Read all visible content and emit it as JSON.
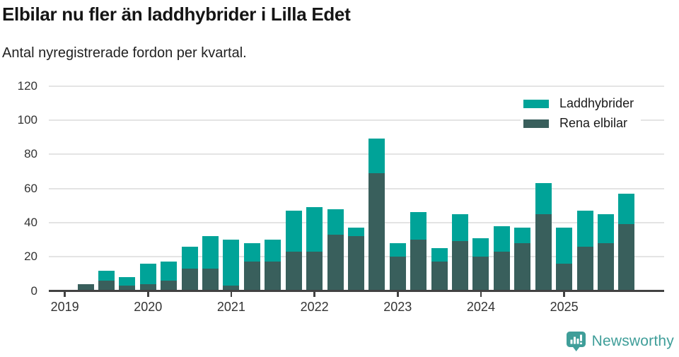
{
  "header": {
    "title": "Elbilar nu fler än laddhybrider i Lilla Edet",
    "subtitle": "Antal nyregistrerade fordon per kvartal."
  },
  "branding": {
    "logo_text": "Newsworthy",
    "logo_color": "#3f9e99"
  },
  "chart_data": {
    "type": "bar",
    "stacked": true,
    "title": "Elbilar nu fler än laddhybrider i Lilla Edet",
    "subtitle": "Antal nyregistrerade fordon per kvartal.",
    "xlabel": "",
    "ylabel": "",
    "ylim": [
      0,
      120
    ],
    "yticks": [
      0,
      20,
      40,
      60,
      80,
      100,
      120
    ],
    "grid": true,
    "legend_position": "top-right",
    "x_tick_labels": [
      "2019",
      "2020",
      "2021",
      "2022",
      "2023",
      "2024",
      "2025"
    ],
    "categories": [
      "2019-Q1",
      "2019-Q2",
      "2019-Q3",
      "2019-Q4",
      "2020-Q1",
      "2020-Q2",
      "2020-Q3",
      "2020-Q4",
      "2021-Q1",
      "2021-Q2",
      "2021-Q3",
      "2021-Q4",
      "2022-Q1",
      "2022-Q2",
      "2022-Q3",
      "2022-Q4",
      "2023-Q1",
      "2023-Q2",
      "2023-Q3",
      "2023-Q4",
      "2024-Q1",
      "2024-Q2",
      "2024-Q3",
      "2024-Q4",
      "2025-Q1",
      "2025-Q2",
      "2025-Q3",
      "2025-Q4"
    ],
    "series": [
      {
        "name": "Laddhybrider",
        "color": "#00a398",
        "stack_position": "top",
        "values": [
          0,
          0,
          6,
          5,
          12,
          11,
          13,
          19,
          27,
          11,
          13,
          24,
          26,
          15,
          5,
          20,
          8,
          16,
          8,
          16,
          11,
          15,
          9,
          18,
          21,
          21,
          17,
          18
        ]
      },
      {
        "name": "Rena elbilar",
        "color": "#395f5c",
        "stack_position": "bottom",
        "values": [
          0,
          4,
          6,
          3,
          4,
          6,
          13,
          13,
          3,
          17,
          17,
          23,
          23,
          33,
          32,
          69,
          20,
          30,
          17,
          29,
          20,
          23,
          28,
          45,
          16,
          26,
          28,
          39
        ]
      }
    ]
  }
}
